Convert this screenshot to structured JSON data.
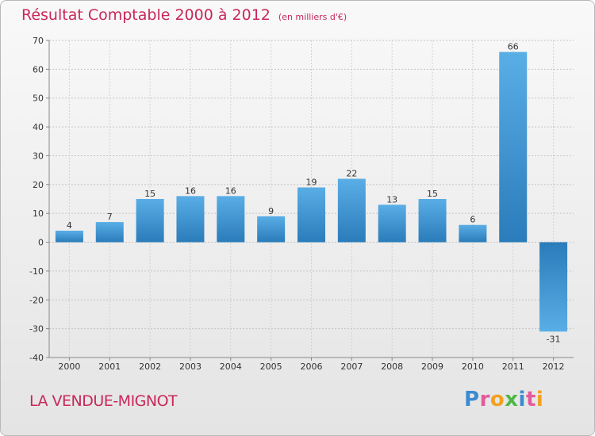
{
  "header": {
    "title": "Résultat Comptable 2000 à 2012",
    "subtitle": "(en milliers d'€)"
  },
  "footer": {
    "commune": "LA VENDUE-MIGNOT",
    "logo_text": "Proxiti",
    "logo_colors": [
      "#3c8bd1",
      "#e35a9c",
      "#f2a11f",
      "#4db848",
      "#3c8bd1",
      "#e35a9c",
      "#f2a11f"
    ]
  },
  "chart_data": {
    "type": "bar",
    "title": "Résultat Comptable 2000 à 2012",
    "subtitle": "(en milliers d'€)",
    "xlabel": "",
    "ylabel": "",
    "categories": [
      "2000",
      "2001",
      "2002",
      "2003",
      "2004",
      "2005",
      "2006",
      "2007",
      "2008",
      "2009",
      "2010",
      "2011",
      "2012"
    ],
    "values": [
      4,
      7,
      15,
      16,
      16,
      9,
      19,
      22,
      13,
      15,
      6,
      66,
      -31
    ],
    "value_labels": [
      "4",
      "7",
      "15",
      "16",
      "16",
      "9",
      "19",
      "22",
      "13",
      "15",
      "6",
      "66",
      "-31"
    ],
    "ylim": [
      -40,
      70
    ],
    "yticks": [
      70,
      60,
      50,
      40,
      30,
      20,
      10,
      0,
      -10,
      -20,
      -30,
      -40
    ],
    "ytick_labels": [
      "70",
      "60",
      "50",
      "40",
      "30",
      "20",
      "10",
      "0",
      "-10",
      "-20",
      "-30",
      "-40"
    ],
    "grid": true,
    "bar_color_light": "#5aaee6",
    "bar_color_dark": "#2a7cba"
  }
}
